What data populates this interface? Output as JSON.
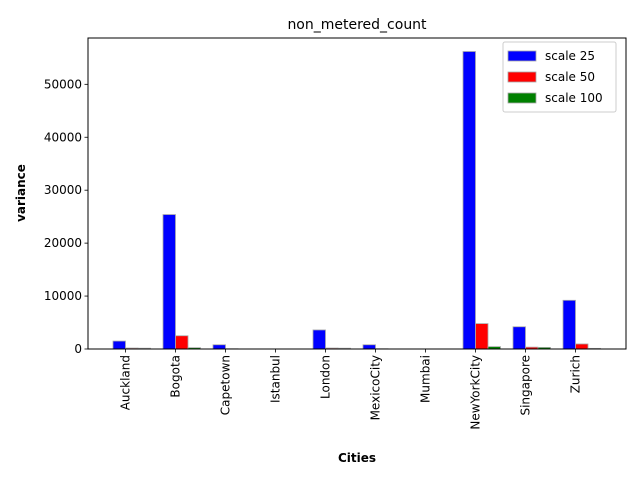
{
  "chart_data": {
    "type": "bar",
    "title": "non_metered_count",
    "xlabel": "Cities",
    "ylabel": "variance",
    "categories": [
      "Auckland",
      "Bogota",
      "Capetown",
      "Istanbul",
      "London",
      "MexicoCity",
      "Mumbai",
      "NewYorkCity",
      "Singapore",
      "Zurich"
    ],
    "series": [
      {
        "name": "scale 25",
        "color": "#0000ff",
        "values": [
          1500,
          25400,
          800,
          0,
          3600,
          800,
          0,
          56200,
          4200,
          9200
        ]
      },
      {
        "name": "scale 50",
        "color": "#ff0000",
        "values": [
          180,
          2500,
          50,
          0,
          180,
          50,
          0,
          4800,
          350,
          950
        ]
      },
      {
        "name": "scale 100",
        "color": "#008000",
        "values": [
          150,
          250,
          0,
          0,
          150,
          0,
          0,
          450,
          300,
          120
        ]
      }
    ],
    "ylim": [
      0,
      58750
    ],
    "yticks": [
      0,
      10000,
      20000,
      30000,
      40000,
      50000
    ],
    "legend_position": "top-right",
    "grid": false
  }
}
